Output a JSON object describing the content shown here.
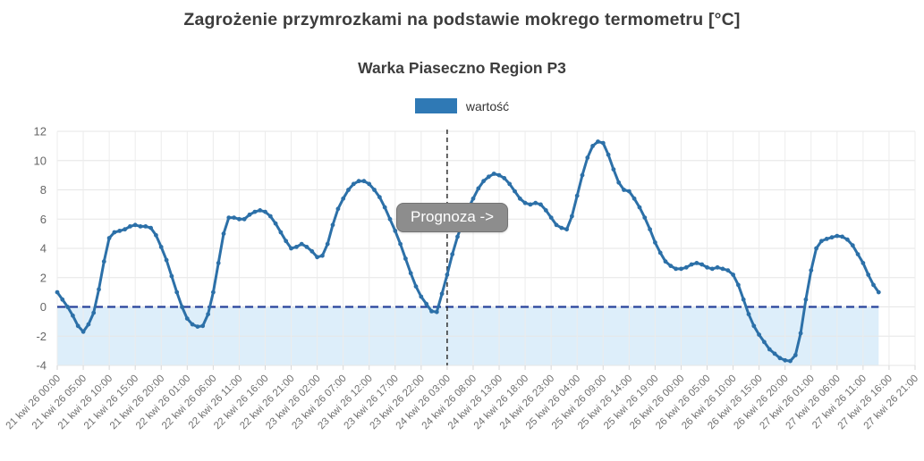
{
  "chart_data": {
    "type": "line",
    "title": "Zagrożenie przymrozkami na podstawie mokrego termometru [°C]",
    "subtitle": "Warka Piaseczno Region P3",
    "xlabel": "",
    "ylabel": "",
    "ylim": [
      -4,
      12
    ],
    "y_ticks": [
      -4,
      -2,
      0,
      2,
      4,
      6,
      8,
      10,
      12
    ],
    "grid": true,
    "legend_position": "top",
    "x_tick_interval_hours": 5,
    "x_total_hours": 165,
    "x_tick_labels": [
      "21 kwi 26 00:00",
      "21 kwi 26 05:00",
      "21 kwi 26 10:00",
      "21 kwi 26 15:00",
      "21 kwi 26 20:00",
      "22 kwi 26 01:00",
      "22 kwi 26 06:00",
      "22 kwi 26 11:00",
      "22 kwi 26 16:00",
      "22 kwi 26 21:00",
      "23 kwi 26 02:00",
      "23 kwi 26 07:00",
      "23 kwi 26 12:00",
      "23 kwi 26 17:00",
      "23 kwi 26 22:00",
      "24 kwi 26 03:00",
      "24 kwi 26 08:00",
      "24 kwi 26 13:00",
      "24 kwi 26 18:00",
      "24 kwi 26 23:00",
      "25 kwi 26 04:00",
      "25 kwi 26 09:00",
      "25 kwi 26 14:00",
      "25 kwi 26 19:00",
      "26 kwi 26 00:00",
      "26 kwi 26 05:00",
      "26 kwi 26 10:00",
      "26 kwi 26 15:00",
      "26 kwi 26 20:00",
      "27 kwi 26 01:00",
      "27 kwi 26 06:00",
      "27 kwi 26 11:00",
      "27 kwi 26 16:00",
      "27 kwi 26 21:00"
    ],
    "series": [
      {
        "name": "wartość",
        "color": "#2c70a8",
        "start": "21 kwi 26 00:00",
        "interval_hours": 1,
        "values": [
          1.0,
          0.5,
          0.0,
          -0.6,
          -1.3,
          -1.7,
          -1.2,
          -0.4,
          1.2,
          3.1,
          4.7,
          5.1,
          5.2,
          5.3,
          5.5,
          5.6,
          5.5,
          5.5,
          5.4,
          4.9,
          4.1,
          3.2,
          2.1,
          1.0,
          0.0,
          -0.8,
          -1.2,
          -1.35,
          -1.3,
          -0.5,
          1.0,
          3.0,
          5.0,
          6.1,
          6.1,
          6.0,
          6.0,
          6.3,
          6.5,
          6.6,
          6.5,
          6.2,
          5.7,
          5.1,
          4.5,
          4.0,
          4.1,
          4.3,
          4.1,
          3.8,
          3.4,
          3.5,
          4.3,
          5.6,
          6.7,
          7.4,
          8.0,
          8.4,
          8.6,
          8.6,
          8.4,
          8.0,
          7.5,
          6.8,
          6.0,
          5.2,
          4.3,
          3.3,
          2.3,
          1.4,
          0.7,
          0.2,
          -0.3,
          -0.35,
          0.9,
          2.2,
          3.6,
          4.8,
          5.8,
          6.7,
          7.4,
          8.1,
          8.6,
          8.9,
          9.1,
          9.0,
          8.8,
          8.4,
          7.9,
          7.4,
          7.1,
          7.0,
          7.1,
          7.0,
          6.6,
          6.1,
          5.6,
          5.4,
          5.3,
          6.2,
          7.6,
          9.0,
          10.2,
          11.0,
          11.3,
          11.2,
          10.4,
          9.4,
          8.5,
          8.0,
          7.9,
          7.4,
          6.8,
          6.1,
          5.3,
          4.4,
          3.7,
          3.1,
          2.8,
          2.6,
          2.6,
          2.7,
          2.9,
          3.0,
          2.9,
          2.7,
          2.6,
          2.7,
          2.6,
          2.5,
          2.2,
          1.5,
          0.5,
          -0.5,
          -1.3,
          -1.9,
          -2.4,
          -2.9,
          -3.2,
          -3.5,
          -3.65,
          -3.7,
          -3.3,
          -1.8,
          0.5,
          2.5,
          4.0,
          4.5,
          4.65,
          4.75,
          4.85,
          4.8,
          4.6,
          4.2,
          3.6,
          3.0,
          2.2,
          1.5,
          1.0
        ]
      }
    ],
    "zero_line": {
      "value": 0,
      "color": "#26429a",
      "style": "dashed"
    },
    "below_zero_band": {
      "from": 0,
      "to": -4,
      "color": "#ddeefa"
    },
    "forecast_line": {
      "at_hour": 75,
      "at_tick": "24 kwi 26 03:00",
      "color": "#222222",
      "style": "dashed"
    },
    "forecast_label": "Prognoza ->",
    "legend_swatch_color": "#2f79b5",
    "axis_text_color": "#6f6f6f"
  }
}
